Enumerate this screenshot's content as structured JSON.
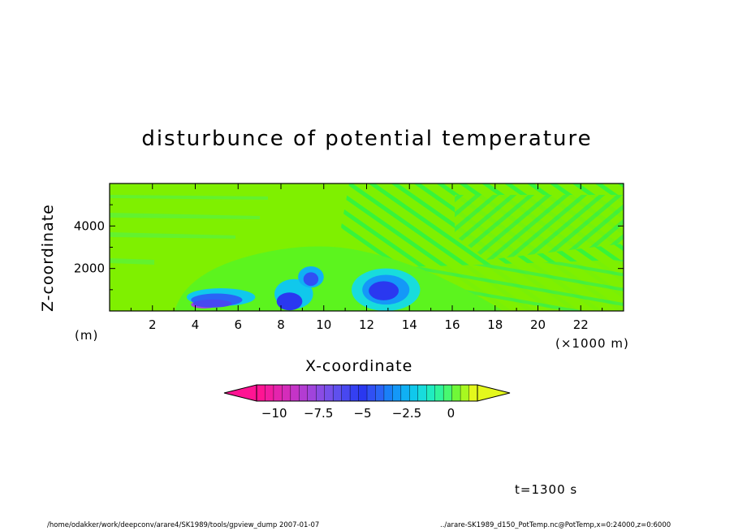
{
  "chart_data": {
    "type": "heatmap",
    "title": "disturbunce of potential temperature",
    "xlabel": "X-coordinate",
    "ylabel": "Z-coordinate",
    "x_unit": "(×1000 m)",
    "y_unit": "(m)",
    "xlim": [
      0,
      24
    ],
    "ylim": [
      0,
      6000
    ],
    "x_ticks": [
      2,
      4,
      6,
      8,
      10,
      12,
      14,
      16,
      18,
      20,
      22
    ],
    "y_ticks": [
      2000,
      4000
    ],
    "colorbar": {
      "ticks": [
        -10,
        -7.5,
        -5,
        -2.5,
        0
      ],
      "tick_labels": [
        "−10",
        "−7.5",
        "−5",
        "−2.5",
        "0"
      ],
      "colors": [
        "#ff1493",
        "#f21ca0",
        "#e424ad",
        "#d52cba",
        "#c534c7",
        "#b33cd2",
        "#a044dc",
        "#8a4ce4",
        "#7650ea",
        "#5f50ee",
        "#4848f0",
        "#3440f2",
        "#2a38f0",
        "#3050f4",
        "#2a64f6",
        "#1a80f8",
        "#1498f8",
        "#10b0f4",
        "#10c8ec",
        "#18dcdc",
        "#20ecc0",
        "#30f49c",
        "#48f870",
        "#70f838",
        "#a8f820",
        "#e4f81c"
      ],
      "extend": "both"
    },
    "regions": [
      {
        "shape": "ellipse",
        "center": [
          4.4,
          300
        ],
        "radius": [
          0.6,
          180
        ],
        "value": -8
      },
      {
        "shape": "ellipse",
        "center": [
          5.2,
          650
        ],
        "radius": [
          1.6,
          420
        ],
        "value": -2
      },
      {
        "shape": "ellipse",
        "center": [
          5.0,
          520
        ],
        "radius": [
          1.2,
          300
        ],
        "value": -4
      },
      {
        "shape": "ellipse",
        "center": [
          4.8,
          350
        ],
        "radius": [
          0.9,
          190
        ],
        "value": -6
      },
      {
        "shape": "ellipse",
        "center": [
          8.6,
          800
        ],
        "radius": [
          0.9,
          700
        ],
        "value": -2
      },
      {
        "shape": "ellipse",
        "center": [
          8.4,
          450
        ],
        "radius": [
          0.6,
          420
        ],
        "value": -5
      },
      {
        "shape": "ellipse",
        "center": [
          9.4,
          1600
        ],
        "radius": [
          0.6,
          500
        ],
        "value": -2.5
      },
      {
        "shape": "ellipse",
        "center": [
          9.4,
          1500
        ],
        "radius": [
          0.35,
          320
        ],
        "value": -4.5
      },
      {
        "shape": "ellipse",
        "center": [
          12.9,
          1000
        ],
        "radius": [
          1.6,
          1000
        ],
        "value": -1.5
      },
      {
        "shape": "ellipse",
        "center": [
          12.9,
          1000
        ],
        "radius": [
          1.1,
          700
        ],
        "value": -3
      },
      {
        "shape": "ellipse",
        "center": [
          12.8,
          950
        ],
        "radius": [
          0.7,
          450
        ],
        "value": -5
      }
    ],
    "colorbar_range": [
      -11,
      1.5
    ]
  },
  "annotations": {
    "time": "t=1300 s",
    "footer_left": "/home/odakker/work/deepconv/arare4/SK1989/tools/gpview_dump  2007-01-07",
    "footer_right": "../arare-SK1989_d150_PotTemp.nc@PotTemp,x=0:24000,z=0:6000"
  },
  "colors": {
    "background_field": "#7ff000",
    "boundary_green": "#5cf800",
    "zero_yellow": "#e8f000"
  }
}
